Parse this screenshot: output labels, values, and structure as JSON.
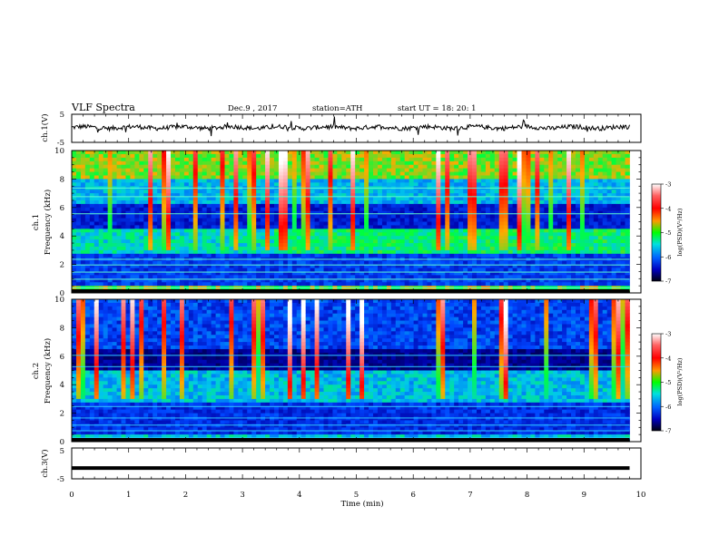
{
  "header": {
    "title": "VLF  Spectra",
    "date": "Dec.9  , 2017",
    "station": "station=ATH",
    "start_ut": "start  UT  =    18: 20: 1"
  },
  "chart_data": [
    {
      "type": "line",
      "panel": "ch1-waveform",
      "ylabel": "ch.1(V)",
      "ytick_labels": [
        "5",
        "-5"
      ],
      "ylim": [
        -5,
        5
      ],
      "baseline": 0.3,
      "xlim": [
        0,
        10
      ],
      "data_end": 9.8
    },
    {
      "type": "heatmap",
      "panel": "ch1-spectrogram",
      "ylabel": "ch.1\nFrequency (kHz)",
      "ytick_labels": [
        "0",
        "2",
        "4",
        "6",
        "8",
        "10"
      ],
      "ylim": [
        0,
        10
      ],
      "xlim": [
        0,
        10
      ],
      "data_end": 9.8,
      "colorbar": {
        "label": "log(PSD)(V²/Hz)",
        "ticks": [
          "-3",
          "-4",
          "-5",
          "-6",
          "-7"
        ],
        "range": [
          -7,
          -3
        ]
      }
    },
    {
      "type": "heatmap",
      "panel": "ch2-spectrogram",
      "ylabel": "ch.2\nFrequency (kHz)",
      "ytick_labels": [
        "0",
        "2",
        "4",
        "6",
        "8",
        "10"
      ],
      "ylim": [
        0,
        10
      ],
      "xlim": [
        0,
        10
      ],
      "data_end": 9.8,
      "colorbar": {
        "label": "log(PSD)(V²/Hz)",
        "ticks": [
          "-3",
          "-4",
          "-5",
          "-6",
          "-7"
        ],
        "range": [
          -7,
          -3
        ]
      }
    },
    {
      "type": "line",
      "panel": "ch3-waveform",
      "ylabel": "ch.3(V)",
      "ytick_labels": [
        "5",
        "-5"
      ],
      "ylim": [
        -5,
        5
      ],
      "baseline": -1.5,
      "xlim": [
        0,
        10
      ],
      "data_end": 9.8,
      "xlabel": "Time  (min)",
      "xtick_labels": [
        "0",
        "1",
        "2",
        "3",
        "4",
        "5",
        "6",
        "7",
        "8",
        "9",
        "10"
      ]
    }
  ]
}
